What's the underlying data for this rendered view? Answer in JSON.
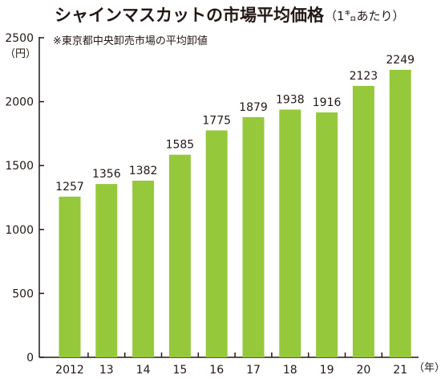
{
  "chart_data": {
    "type": "bar",
    "title": "シャインマスカットの市場平均価格",
    "title_unit": "（1㌔あたり）",
    "note": "※東京都中央卸売市場の平均卸値",
    "ylabel": "（円）",
    "xlabel_suffix": "（年）",
    "categories": [
      "2012",
      "13",
      "14",
      "15",
      "16",
      "17",
      "18",
      "19",
      "20",
      "21"
    ],
    "values": [
      1257,
      1356,
      1382,
      1585,
      1775,
      1879,
      1938,
      1916,
      2123,
      2249
    ],
    "data_labels": [
      "1257",
      "1356",
      "1382",
      "1585",
      "1775",
      "1879",
      "1938",
      "1916",
      "2123",
      "2249"
    ],
    "ylim": [
      0,
      2500
    ],
    "yticks": [
      0,
      500,
      1000,
      1500,
      2000,
      2500
    ],
    "ytick_labels": [
      "0",
      "500",
      "1000",
      "1500",
      "2000",
      "2500"
    ],
    "grid": false,
    "legend": "none",
    "colors": {
      "bar": "#96c83c",
      "text": "#231815",
      "axis": "#231815"
    }
  }
}
